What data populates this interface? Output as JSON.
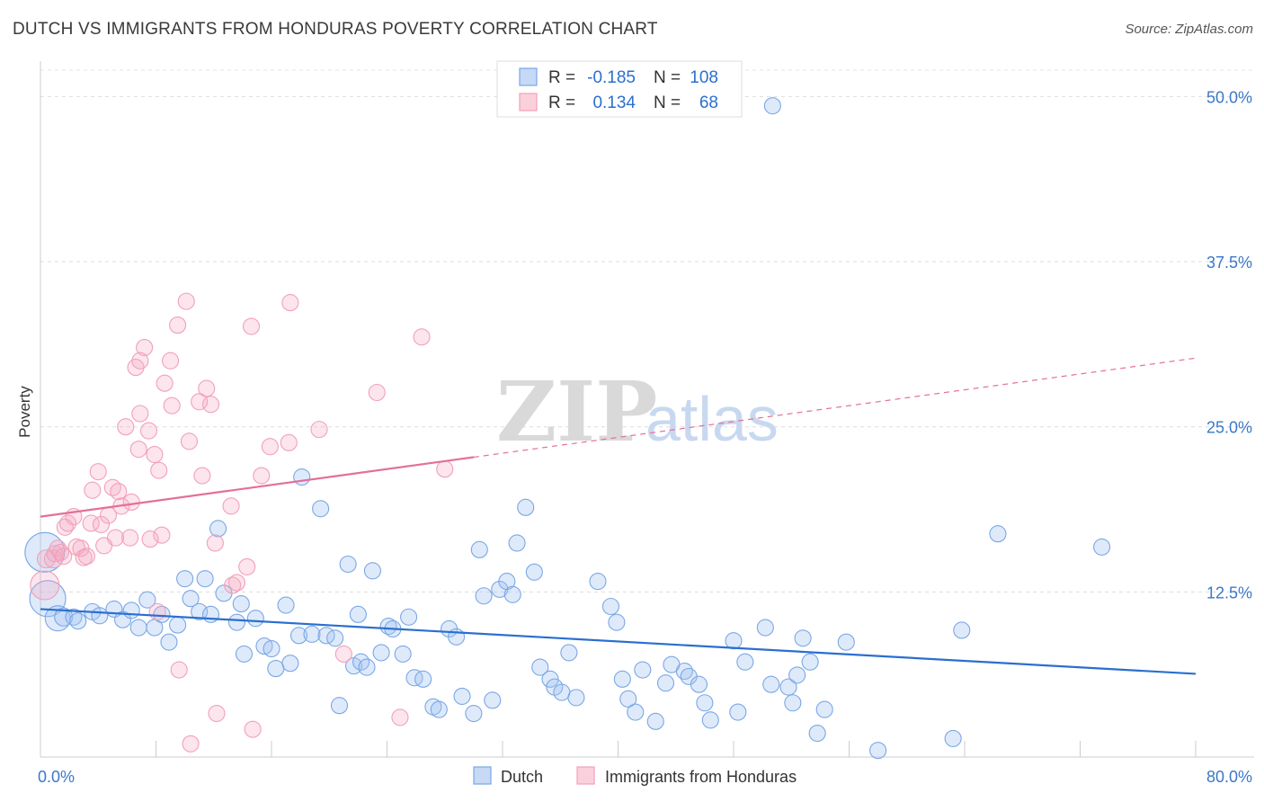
{
  "title": "DUTCH VS IMMIGRANTS FROM HONDURAS POVERTY CORRELATION CHART",
  "source": "Source: ZipAtlas.com",
  "watermark": {
    "zip": "ZIP",
    "atlas": "atlas"
  },
  "legend_top": {
    "rows": [
      {
        "r_label": "R =",
        "r_value": "-0.185",
        "n_label": "N =",
        "n_value": "108",
        "color": "#7aa7e6"
      },
      {
        "r_label": "R =",
        "r_value": "0.134",
        "n_label": "N =",
        "n_value": "68",
        "color": "#f2a0b8"
      }
    ]
  },
  "chart_data": {
    "type": "scatter",
    "xlabel": "",
    "ylabel": "Poverty",
    "xlim": [
      0,
      80
    ],
    "ylim": [
      0,
      52
    ],
    "x_tick_labels": [
      {
        "value": 0,
        "label": "0.0%"
      },
      {
        "value": 80,
        "label": "80.0%"
      }
    ],
    "y_tick_labels": [
      {
        "value": 12.5,
        "label": "12.5%"
      },
      {
        "value": 25.0,
        "label": "25.0%"
      },
      {
        "value": 37.5,
        "label": "37.5%"
      },
      {
        "value": 50.0,
        "label": "50.0%"
      }
    ],
    "x_minor_ticks": [
      0,
      8,
      16,
      24,
      32,
      40,
      48,
      56,
      64,
      72,
      80
    ],
    "grid": true,
    "legend_bottom": [
      "Dutch",
      "Immigrants from Honduras"
    ],
    "series": [
      {
        "name": "Dutch",
        "color": "#7aa7e6",
        "line_color": "#2a6fcf",
        "trend": {
          "x0": 0,
          "y0": 11.2,
          "x1": 80,
          "y1": 6.3,
          "dashed_from": null
        },
        "points": [
          [
            0.3,
            15.5,
            22
          ],
          [
            0.5,
            12.0,
            20
          ],
          [
            1.2,
            10.5,
            14
          ],
          [
            1.6,
            10.6,
            10
          ],
          [
            2.3,
            10.6,
            9
          ],
          [
            2.6,
            10.3,
            9
          ],
          [
            3.6,
            11.0,
            9
          ],
          [
            4.1,
            10.7,
            9
          ],
          [
            5.1,
            11.2,
            9
          ],
          [
            5.7,
            10.4,
            9
          ],
          [
            6.3,
            11.1,
            9
          ],
          [
            6.8,
            9.8,
            9
          ],
          [
            7.4,
            11.9,
            9
          ],
          [
            7.9,
            9.8,
            9
          ],
          [
            8.9,
            8.7,
            9
          ],
          [
            8.4,
            10.8,
            9
          ],
          [
            9.5,
            10.0,
            9
          ],
          [
            10.0,
            13.5,
            9
          ],
          [
            10.4,
            12.0,
            9
          ],
          [
            11.0,
            11.0,
            9
          ],
          [
            11.4,
            13.5,
            9
          ],
          [
            11.8,
            10.8,
            9
          ],
          [
            12.3,
            17.3,
            9
          ],
          [
            12.7,
            12.4,
            9
          ],
          [
            13.6,
            10.2,
            9
          ],
          [
            13.9,
            11.6,
            9
          ],
          [
            14.1,
            7.8,
            9
          ],
          [
            14.9,
            10.5,
            9
          ],
          [
            15.5,
            8.4,
            9
          ],
          [
            16.0,
            8.2,
            9
          ],
          [
            16.3,
            6.7,
            9
          ],
          [
            17.0,
            11.5,
            9
          ],
          [
            17.3,
            7.1,
            9
          ],
          [
            17.9,
            9.2,
            9
          ],
          [
            18.1,
            21.2,
            9
          ],
          [
            18.8,
            9.3,
            9
          ],
          [
            19.4,
            18.8,
            9
          ],
          [
            19.8,
            9.2,
            9
          ],
          [
            20.4,
            9.0,
            9
          ],
          [
            20.7,
            3.9,
            9
          ],
          [
            21.3,
            14.6,
            9
          ],
          [
            21.7,
            6.9,
            9
          ],
          [
            22.2,
            7.2,
            9
          ],
          [
            22.6,
            6.8,
            9
          ],
          [
            23.0,
            14.1,
            9
          ],
          [
            23.6,
            7.9,
            9
          ],
          [
            24.1,
            9.9,
            9
          ],
          [
            24.4,
            9.7,
            9
          ],
          [
            25.1,
            7.8,
            9
          ],
          [
            25.5,
            10.6,
            9
          ],
          [
            25.9,
            6.0,
            9
          ],
          [
            26.5,
            5.9,
            9
          ],
          [
            27.2,
            3.8,
            9
          ],
          [
            27.6,
            3.6,
            9
          ],
          [
            28.3,
            9.7,
            9
          ],
          [
            28.8,
            9.1,
            9
          ],
          [
            29.2,
            4.6,
            9
          ],
          [
            30.0,
            3.3,
            9
          ],
          [
            30.4,
            15.7,
            9
          ],
          [
            30.7,
            12.2,
            9
          ],
          [
            31.3,
            4.3,
            9
          ],
          [
            31.8,
            12.7,
            9
          ],
          [
            32.3,
            13.3,
            9
          ],
          [
            32.7,
            12.3,
            9
          ],
          [
            33.0,
            16.2,
            9
          ],
          [
            33.6,
            18.9,
            9
          ],
          [
            34.2,
            14.0,
            9
          ],
          [
            34.6,
            6.8,
            9
          ],
          [
            35.3,
            5.9,
            9
          ],
          [
            35.6,
            5.3,
            9
          ],
          [
            36.1,
            4.9,
            9
          ],
          [
            36.6,
            7.9,
            9
          ],
          [
            37.1,
            4.5,
            9
          ],
          [
            38.6,
            13.3,
            9
          ],
          [
            39.5,
            11.4,
            9
          ],
          [
            39.9,
            10.2,
            9
          ],
          [
            40.3,
            5.9,
            9
          ],
          [
            40.7,
            4.4,
            9
          ],
          [
            41.2,
            3.4,
            9
          ],
          [
            41.7,
            6.6,
            9
          ],
          [
            42.6,
            2.7,
            9
          ],
          [
            43.3,
            5.6,
            9
          ],
          [
            43.7,
            7.0,
            9
          ],
          [
            44.6,
            6.5,
            9
          ],
          [
            44.9,
            6.1,
            9
          ],
          [
            45.6,
            5.5,
            9
          ],
          [
            46.0,
            4.1,
            9
          ],
          [
            46.4,
            2.8,
            9
          ],
          [
            48.0,
            8.8,
            9
          ],
          [
            48.3,
            3.4,
            9
          ],
          [
            48.8,
            7.2,
            9
          ],
          [
            50.2,
            9.8,
            9
          ],
          [
            50.6,
            5.5,
            9
          ],
          [
            51.8,
            5.3,
            9
          ],
          [
            52.1,
            4.1,
            9
          ],
          [
            52.4,
            6.2,
            9
          ],
          [
            52.8,
            9.0,
            9
          ],
          [
            53.3,
            7.2,
            9
          ],
          [
            53.8,
            1.8,
            9
          ],
          [
            54.3,
            3.6,
            9
          ],
          [
            55.8,
            8.7,
            9
          ],
          [
            58.0,
            0.5,
            9
          ],
          [
            63.2,
            1.4,
            9
          ],
          [
            63.8,
            9.6,
            9
          ],
          [
            66.3,
            16.9,
            9
          ],
          [
            73.5,
            15.9,
            9
          ],
          [
            50.7,
            49.3,
            9
          ],
          [
            22.0,
            10.8,
            9
          ]
        ]
      },
      {
        "name": "Immigrants from Honduras",
        "color": "#f2a0b8",
        "line_color": "#e46f98",
        "trend": {
          "x0": 0,
          "y0": 18.2,
          "x1": 80,
          "y1": 30.2,
          "dashed_from": 30
        },
        "points": [
          [
            0.3,
            13.0,
            16
          ],
          [
            0.4,
            15.0,
            10
          ],
          [
            0.9,
            15.0,
            10
          ],
          [
            1.0,
            15.4,
            9
          ],
          [
            1.2,
            15.8,
            9
          ],
          [
            1.4,
            15.5,
            9
          ],
          [
            1.6,
            15.2,
            9
          ],
          [
            1.7,
            17.4,
            9
          ],
          [
            1.9,
            17.7,
            9
          ],
          [
            2.3,
            18.2,
            9
          ],
          [
            2.5,
            15.9,
            9
          ],
          [
            2.8,
            15.8,
            9
          ],
          [
            3.0,
            15.1,
            9
          ],
          [
            3.2,
            15.2,
            9
          ],
          [
            3.5,
            17.7,
            9
          ],
          [
            3.6,
            20.2,
            9
          ],
          [
            4.0,
            21.6,
            9
          ],
          [
            4.2,
            17.6,
            9
          ],
          [
            4.4,
            16.0,
            9
          ],
          [
            4.7,
            18.3,
            9
          ],
          [
            5.0,
            20.4,
            9
          ],
          [
            5.2,
            16.6,
            9
          ],
          [
            5.4,
            20.1,
            9
          ],
          [
            5.6,
            19.0,
            9
          ],
          [
            5.9,
            25.0,
            9
          ],
          [
            6.2,
            16.6,
            9
          ],
          [
            6.3,
            19.3,
            9
          ],
          [
            6.6,
            29.5,
            9
          ],
          [
            6.8,
            23.3,
            9
          ],
          [
            6.9,
            26.0,
            9
          ],
          [
            7.2,
            31.0,
            9
          ],
          [
            7.5,
            24.7,
            9
          ],
          [
            7.6,
            16.5,
            9
          ],
          [
            7.9,
            22.9,
            9
          ],
          [
            8.2,
            21.7,
            9
          ],
          [
            8.4,
            16.8,
            9
          ],
          [
            8.6,
            28.3,
            9
          ],
          [
            9.0,
            30.0,
            9
          ],
          [
            9.1,
            26.6,
            9
          ],
          [
            9.5,
            32.7,
            9
          ],
          [
            9.6,
            6.6,
            9
          ],
          [
            10.1,
            34.5,
            9
          ],
          [
            10.3,
            23.9,
            9
          ],
          [
            10.4,
            1.0,
            9
          ],
          [
            11.0,
            26.9,
            9
          ],
          [
            11.2,
            21.3,
            9
          ],
          [
            11.5,
            27.9,
            9
          ],
          [
            11.8,
            26.7,
            9
          ],
          [
            12.1,
            16.2,
            9
          ],
          [
            12.2,
            3.3,
            9
          ],
          [
            13.2,
            19.0,
            9
          ],
          [
            13.3,
            13.0,
            9
          ],
          [
            13.6,
            13.2,
            9
          ],
          [
            14.3,
            14.4,
            9
          ],
          [
            14.6,
            32.6,
            9
          ],
          [
            14.7,
            2.1,
            9
          ],
          [
            15.3,
            21.3,
            9
          ],
          [
            15.9,
            23.5,
            9
          ],
          [
            17.2,
            23.8,
            9
          ],
          [
            17.3,
            34.4,
            9
          ],
          [
            19.3,
            24.8,
            9
          ],
          [
            21.0,
            7.8,
            9
          ],
          [
            23.3,
            27.6,
            9
          ],
          [
            24.9,
            3.0,
            9
          ],
          [
            26.4,
            31.8,
            9
          ],
          [
            28.0,
            21.8,
            9
          ],
          [
            8.1,
            11.0,
            9
          ],
          [
            6.9,
            30.0,
            9
          ]
        ]
      }
    ]
  }
}
